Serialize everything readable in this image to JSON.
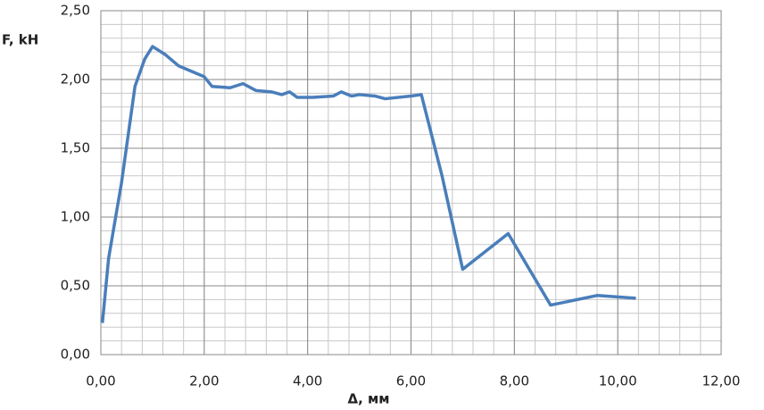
{
  "chart_data": {
    "type": "line",
    "y_label": "F, kH",
    "x_label": "Δ, мм",
    "x": [
      0.03,
      0.15,
      0.4,
      0.66,
      0.85,
      1.0,
      1.25,
      1.5,
      1.75,
      2.0,
      2.15,
      2.5,
      2.75,
      3.0,
      3.3,
      3.5,
      3.65,
      3.8,
      4.1,
      4.5,
      4.65,
      4.85,
      5.0,
      5.3,
      5.5,
      6.0,
      6.2,
      6.6,
      7.0,
      7.88,
      8.7,
      9.6,
      10.35
    ],
    "series": [
      {
        "color": "#4a7ebb",
        "values": [
          0.23,
          0.7,
          1.25,
          1.95,
          2.15,
          2.24,
          2.18,
          2.1,
          2.06,
          2.02,
          1.95,
          1.94,
          1.97,
          1.92,
          1.91,
          1.89,
          1.91,
          1.87,
          1.87,
          1.88,
          1.91,
          1.88,
          1.89,
          1.88,
          1.86,
          1.88,
          1.89,
          1.3,
          0.62,
          0.88,
          0.36,
          0.43,
          0.41
        ]
      }
    ],
    "xlim": [
      0,
      12
    ],
    "ylim": [
      0,
      2.5
    ],
    "xticks": [
      {
        "value": 0,
        "label": "0,00"
      },
      {
        "value": 2,
        "label": "2,00"
      },
      {
        "value": 4,
        "label": "4,00"
      },
      {
        "value": 6,
        "label": "6,00"
      },
      {
        "value": 8,
        "label": "8,00"
      },
      {
        "value": 10,
        "label": "10,00"
      },
      {
        "value": 12,
        "label": "12,00"
      }
    ],
    "yticks": [
      {
        "value": 0,
        "label": "0,00"
      },
      {
        "value": 0.5,
        "label": "0,50"
      },
      {
        "value": 1,
        "label": "1,00"
      },
      {
        "value": 1.5,
        "label": "1,50"
      },
      {
        "value": 2,
        "label": "2,00"
      },
      {
        "value": 2.5,
        "label": "2,50"
      }
    ],
    "grid": true,
    "minor_grid": {
      "x": 0.4,
      "y": 0.1
    }
  }
}
